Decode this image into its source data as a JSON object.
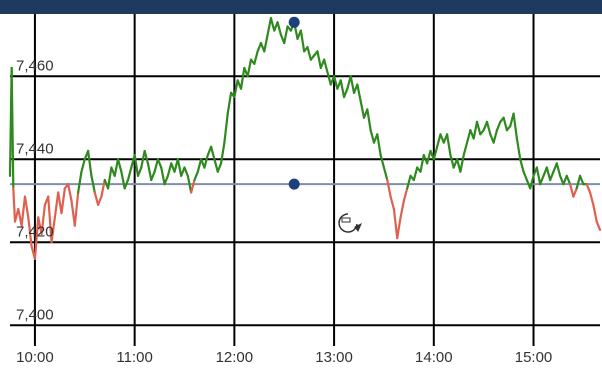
{
  "colors": {
    "header": "#1f3a5f",
    "grid": "#000000",
    "baseline": "#7f8fa8",
    "above": "#2e8a1e",
    "below": "#e06050",
    "marker": "#1f3f7a",
    "cursor": "#333333"
  },
  "cursor_icon": "rotate-cursor-icon",
  "chart_data": {
    "type": "line",
    "x_ticks": [
      "10:00",
      "11:00",
      "12:00",
      "13:00",
      "14:00",
      "15:00"
    ],
    "y_ticks": [
      "7,400",
      "7,420",
      "7,440",
      "7,460"
    ],
    "xlim": [
      "09:45",
      "15:40"
    ],
    "ylim": [
      7395,
      7475
    ],
    "baseline": 7434,
    "grid": true,
    "markers": [
      {
        "x": "12:36",
        "y": 7473
      },
      {
        "x": "12:36",
        "y": 7434
      }
    ],
    "series": [
      {
        "points": [
          [
            "09:45",
            7436
          ],
          [
            "09:46",
            7462
          ],
          [
            "09:47",
            7433
          ],
          [
            "09:48",
            7425
          ],
          [
            "09:50",
            7428
          ],
          [
            "09:52",
            7424
          ],
          [
            "09:54",
            7431
          ],
          [
            "09:56",
            7426
          ],
          [
            "09:58",
            7419
          ],
          [
            "10:00",
            7416
          ],
          [
            "10:02",
            7426
          ],
          [
            "10:04",
            7422
          ],
          [
            "10:06",
            7429
          ],
          [
            "10:08",
            7431
          ],
          [
            "10:10",
            7420
          ],
          [
            "10:12",
            7426
          ],
          [
            "10:14",
            7432
          ],
          [
            "10:16",
            7427
          ],
          [
            "10:18",
            7433
          ],
          [
            "10:20",
            7434
          ],
          [
            "10:22",
            7430
          ],
          [
            "10:24",
            7424
          ],
          [
            "10:26",
            7432
          ],
          [
            "10:28",
            7437
          ],
          [
            "10:30",
            7440
          ],
          [
            "10:32",
            7442
          ],
          [
            "10:34",
            7436
          ],
          [
            "10:36",
            7432
          ],
          [
            "10:38",
            7429
          ],
          [
            "10:40",
            7431
          ],
          [
            "10:42",
            7435
          ],
          [
            "10:44",
            7433
          ],
          [
            "10:46",
            7438
          ],
          [
            "10:48",
            7436
          ],
          [
            "10:50",
            7440
          ],
          [
            "10:52",
            7437
          ],
          [
            "10:54",
            7433
          ],
          [
            "10:56",
            7435
          ],
          [
            "10:58",
            7438
          ],
          [
            "11:00",
            7441
          ],
          [
            "11:02",
            7436
          ],
          [
            "11:04",
            7438
          ],
          [
            "11:06",
            7442
          ],
          [
            "11:08",
            7439
          ],
          [
            "11:10",
            7435
          ],
          [
            "11:12",
            7437
          ],
          [
            "11:14",
            7440
          ],
          [
            "11:16",
            7438
          ],
          [
            "11:18",
            7434
          ],
          [
            "11:20",
            7436
          ],
          [
            "11:22",
            7439
          ],
          [
            "11:24",
            7437
          ],
          [
            "11:26",
            7440
          ],
          [
            "11:28",
            7436
          ],
          [
            "11:30",
            7438
          ],
          [
            "11:32",
            7436
          ],
          [
            "11:34",
            7432
          ],
          [
            "11:36",
            7435
          ],
          [
            "11:38",
            7437
          ],
          [
            "11:40",
            7440
          ],
          [
            "11:42",
            7438
          ],
          [
            "11:44",
            7441
          ],
          [
            "11:46",
            7443
          ],
          [
            "11:48",
            7440
          ],
          [
            "11:50",
            7437
          ],
          [
            "11:52",
            7439
          ],
          [
            "11:54",
            7444
          ],
          [
            "11:56",
            7451
          ],
          [
            "11:58",
            7456
          ],
          [
            "12:00",
            7455
          ],
          [
            "12:02",
            7459
          ],
          [
            "12:04",
            7457
          ],
          [
            "12:06",
            7462
          ],
          [
            "12:08",
            7460
          ],
          [
            "12:10",
            7464
          ],
          [
            "12:12",
            7463
          ],
          [
            "12:14",
            7466
          ],
          [
            "12:16",
            7468
          ],
          [
            "12:18",
            7466
          ],
          [
            "12:20",
            7470
          ],
          [
            "12:22",
            7474
          ],
          [
            "12:24",
            7471
          ],
          [
            "12:26",
            7473
          ],
          [
            "12:28",
            7470
          ],
          [
            "12:30",
            7468
          ],
          [
            "12:32",
            7472
          ],
          [
            "12:34",
            7471
          ],
          [
            "12:36",
            7473
          ],
          [
            "12:38",
            7469
          ],
          [
            "12:40",
            7471
          ],
          [
            "12:42",
            7466
          ],
          [
            "12:44",
            7467
          ],
          [
            "12:46",
            7464
          ],
          [
            "12:48",
            7465
          ],
          [
            "12:50",
            7466
          ],
          [
            "12:52",
            7462
          ],
          [
            "12:54",
            7464
          ],
          [
            "12:56",
            7461
          ],
          [
            "12:58",
            7458
          ],
          [
            "13:00",
            7460
          ],
          [
            "13:02",
            7457
          ],
          [
            "13:04",
            7459
          ],
          [
            "13:06",
            7455
          ],
          [
            "13:08",
            7457
          ],
          [
            "13:10",
            7460
          ],
          [
            "13:12",
            7456
          ],
          [
            "13:14",
            7458
          ],
          [
            "13:16",
            7454
          ],
          [
            "13:18",
            7450
          ],
          [
            "13:20",
            7452
          ],
          [
            "13:22",
            7447
          ],
          [
            "13:24",
            7444
          ],
          [
            "13:26",
            7446
          ],
          [
            "13:28",
            7441
          ],
          [
            "13:30",
            7438
          ],
          [
            "13:32",
            7435
          ],
          [
            "13:34",
            7431
          ],
          [
            "13:36",
            7428
          ],
          [
            "13:38",
            7421
          ],
          [
            "13:40",
            7426
          ],
          [
            "13:42",
            7430
          ],
          [
            "13:44",
            7433
          ],
          [
            "13:46",
            7436
          ],
          [
            "13:48",
            7435
          ],
          [
            "13:50",
            7438
          ],
          [
            "13:52",
            7437
          ],
          [
            "13:54",
            7441
          ],
          [
            "13:56",
            7439
          ],
          [
            "13:58",
            7442
          ],
          [
            "14:00",
            7440
          ],
          [
            "14:02",
            7443
          ],
          [
            "14:04",
            7446
          ],
          [
            "14:06",
            7444
          ],
          [
            "14:08",
            7446
          ],
          [
            "14:10",
            7441
          ],
          [
            "14:12",
            7438
          ],
          [
            "14:14",
            7440
          ],
          [
            "14:16",
            7437
          ],
          [
            "14:18",
            7441
          ],
          [
            "14:20",
            7444
          ],
          [
            "14:22",
            7447
          ],
          [
            "14:24",
            7445
          ],
          [
            "14:26",
            7449
          ],
          [
            "14:28",
            7446
          ],
          [
            "14:30",
            7447
          ],
          [
            "14:32",
            7449
          ],
          [
            "14:34",
            7446
          ],
          [
            "14:36",
            7444
          ],
          [
            "14:38",
            7447
          ],
          [
            "14:40",
            7449
          ],
          [
            "14:42",
            7450
          ],
          [
            "14:44",
            7447
          ],
          [
            "14:46",
            7448
          ],
          [
            "14:48",
            7451
          ],
          [
            "14:50",
            7445
          ],
          [
            "14:52",
            7440
          ],
          [
            "14:54",
            7437
          ],
          [
            "14:56",
            7435
          ],
          [
            "14:58",
            7433
          ],
          [
            "15:00",
            7436
          ],
          [
            "15:02",
            7438
          ],
          [
            "15:04",
            7434
          ],
          [
            "15:06",
            7436
          ],
          [
            "15:08",
            7438
          ],
          [
            "15:10",
            7435
          ],
          [
            "15:12",
            7437
          ],
          [
            "15:14",
            7439
          ],
          [
            "15:16",
            7436
          ],
          [
            "15:18",
            7434
          ],
          [
            "15:20",
            7436
          ],
          [
            "15:22",
            7434
          ],
          [
            "15:24",
            7431
          ],
          [
            "15:26",
            7433
          ],
          [
            "15:28",
            7436
          ],
          [
            "15:30",
            7434
          ],
          [
            "15:32",
            7434
          ],
          [
            "15:34",
            7432
          ],
          [
            "15:36",
            7429
          ],
          [
            "15:38",
            7425
          ],
          [
            "15:40",
            7423
          ]
        ]
      }
    ]
  }
}
